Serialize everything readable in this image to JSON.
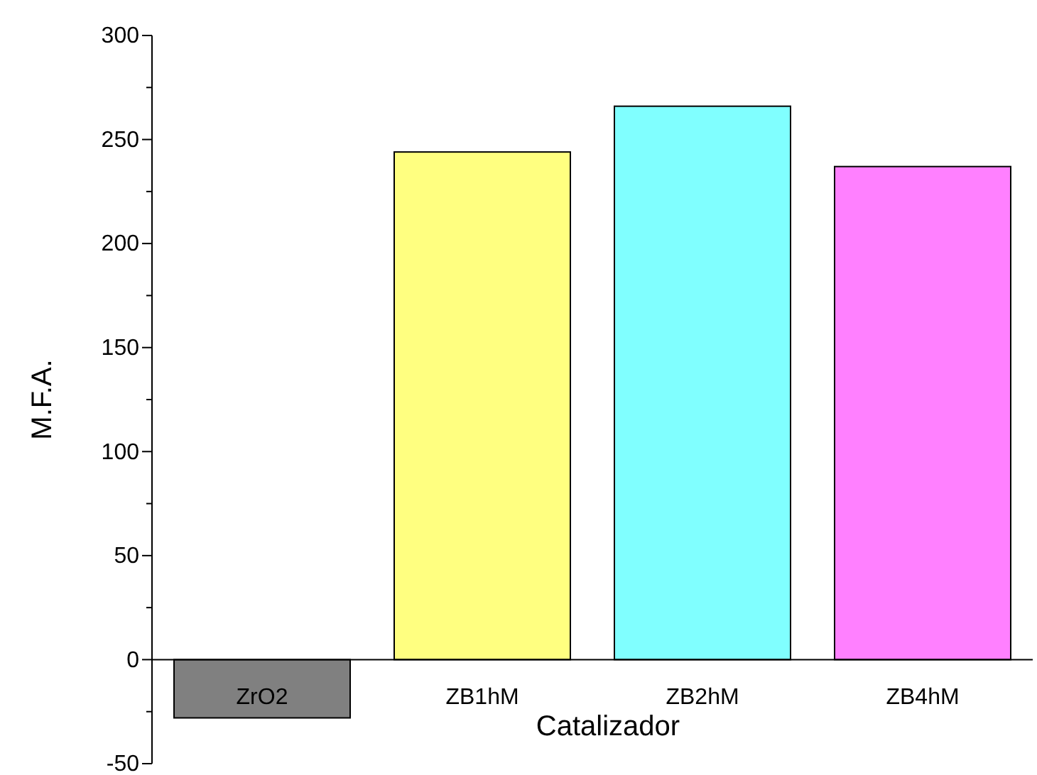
{
  "chart_data": {
    "type": "bar",
    "xlabel": "Catalizador",
    "ylabel": "M.F.A.",
    "categories": [
      "ZrO2",
      "ZB1hM",
      "ZB2hM",
      "ZB4hM"
    ],
    "values": [
      -28,
      244,
      266,
      237
    ],
    "colors": [
      "#808080",
      "#ffff80",
      "#80ffff",
      "#ff80ff"
    ],
    "ylim": [
      -50,
      300
    ],
    "yticks": [
      -50,
      {
        "value": -25,
        "label": null
      },
      0,
      {
        "value": 25,
        "label": null
      },
      50,
      {
        "value": 75,
        "label": null
      },
      100,
      {
        "value": 125,
        "label": null
      },
      150,
      {
        "value": 175,
        "label": null
      },
      200,
      {
        "value": 225,
        "label": null
      },
      250,
      {
        "value": 275,
        "label": null
      },
      300
    ],
    "grid": false
  }
}
